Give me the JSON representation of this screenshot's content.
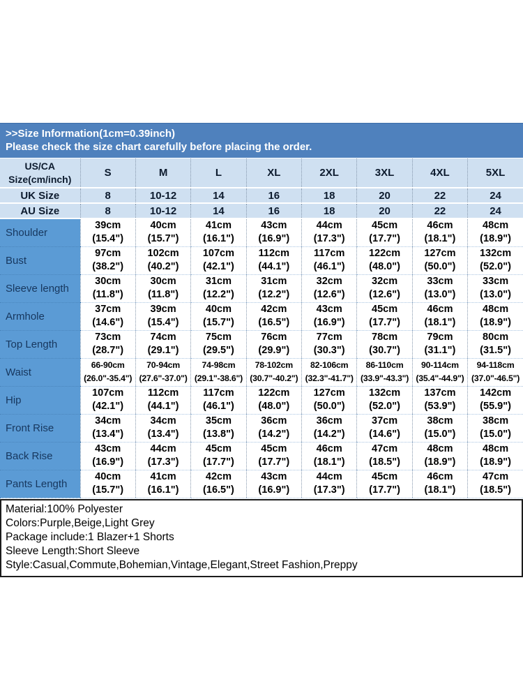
{
  "header": {
    "line1": ">>Size Information(1cm=0.39inch)",
    "line2": "Please check the size chart carefully before placing the order."
  },
  "table": {
    "corner": {
      "line1": "US/CA",
      "line2": "Size(cm/inch)"
    },
    "size_columns": [
      "S",
      "M",
      "L",
      "XL",
      "2XL",
      "3XL",
      "4XL",
      "5XL"
    ],
    "size_rows": [
      {
        "label": "UK Size",
        "values": [
          "8",
          "10-12",
          "14",
          "16",
          "18",
          "20",
          "22",
          "24"
        ]
      },
      {
        "label": "AU Size",
        "values": [
          "8",
          "10-12",
          "14",
          "16",
          "18",
          "20",
          "22",
          "24"
        ]
      }
    ],
    "measurement_rows": [
      {
        "label": "Shoulder",
        "values": [
          "39cm\n(15.4\")",
          "40cm\n(15.7\")",
          "41cm\n(16.1\")",
          "43cm\n(16.9\")",
          "44cm\n(17.3\")",
          "45cm\n(17.7\")",
          "46cm\n(18.1\")",
          "48cm\n(18.9\")"
        ]
      },
      {
        "label": "Bust",
        "values": [
          "97cm\n(38.2\")",
          "102cm\n(40.2\")",
          "107cm\n(42.1\")",
          "112cm\n(44.1\")",
          "117cm\n(46.1\")",
          "122cm\n(48.0\")",
          "127cm\n(50.0\")",
          "132cm\n(52.0\")"
        ]
      },
      {
        "label": "Sleeve length",
        "values": [
          "30cm\n(11.8\")",
          "30cm\n(11.8\")",
          "31cm\n(12.2\")",
          "31cm\n(12.2\")",
          "32cm\n(12.6\")",
          "32cm\n(12.6\")",
          "33cm\n(13.0\")",
          "33cm\n(13.0\")"
        ]
      },
      {
        "label": "Armhole",
        "values": [
          "37cm\n(14.6\")",
          "39cm\n(15.4\")",
          "40cm\n(15.7\")",
          "42cm\n(16.5\")",
          "43cm\n(16.9\")",
          "45cm\n(17.7\")",
          "46cm\n(18.1\")",
          "48cm\n(18.9\")"
        ]
      },
      {
        "label": "Top Length",
        "values": [
          "73cm\n(28.7\")",
          "74cm\n(29.1\")",
          "75cm\n(29.5\")",
          "76cm\n(29.9\")",
          "77cm\n(30.3\")",
          "78cm\n(30.7\")",
          "79cm\n(31.1\")",
          "80cm\n(31.5\")"
        ]
      },
      {
        "label": "Waist",
        "values": [
          "66-90cm\n(26.0\"-35.4\")",
          "70-94cm\n(27.6\"-37.0\")",
          "74-98cm\n(29.1\"-38.6\")",
          "78-102cm\n(30.7\"-40.2\")",
          "82-106cm\n(32.3\"-41.7\")",
          "86-110cm\n(33.9\"-43.3\")",
          "90-114cm\n(35.4\"-44.9\")",
          "94-118cm\n(37.0\"-46.5\")"
        ]
      },
      {
        "label": "Hip",
        "values": [
          "107cm\n(42.1\")",
          "112cm\n(44.1\")",
          "117cm\n(46.1\")",
          "122cm\n(48.0\")",
          "127cm\n(50.0\")",
          "132cm\n(52.0\")",
          "137cm\n(53.9\")",
          "142cm\n(55.9\")"
        ]
      },
      {
        "label": "Front Rise",
        "values": [
          "34cm\n(13.4\")",
          "34cm\n(13.4\")",
          "35cm\n(13.8\")",
          "36cm\n(14.2\")",
          "36cm\n(14.2\")",
          "37cm\n(14.6\")",
          "38cm\n(15.0\")",
          "38cm\n(15.0\")"
        ]
      },
      {
        "label": "Back Rise",
        "values": [
          "43cm\n(16.9\")",
          "44cm\n(17.3\")",
          "45cm\n(17.7\")",
          "45cm\n(17.7\")",
          "46cm\n(18.1\")",
          "47cm\n(18.5\")",
          "48cm\n(18.9\")",
          "48cm\n(18.9\")"
        ]
      },
      {
        "label": "Pants Length",
        "values": [
          "40cm\n(15.7\")",
          "41cm\n(16.1\")",
          "42cm\n(16.5\")",
          "43cm\n(16.9\")",
          "44cm\n(17.3\")",
          "45cm\n(17.7\")",
          "46cm\n(18.1\")",
          "47cm\n(18.5\")"
        ]
      }
    ]
  },
  "details": {
    "lines": [
      "Material:100% Polyester",
      "Colors:Purple,Beige,Light Grey",
      "Package include:1 Blazer+1 Shorts",
      "Sleeve Length:Short Sleeve",
      "Style:Casual,Commute,Bohemian,Vintage,Elegant,Street Fashion,Preppy"
    ]
  },
  "colors": {
    "title_band_bg": "#4f81bd",
    "header_row_bg": "#cfe0f1",
    "label_column_bg": "#5b9bd5",
    "label_text": "#17375e",
    "title_text": "#ffffff",
    "body_text": "#000000"
  }
}
